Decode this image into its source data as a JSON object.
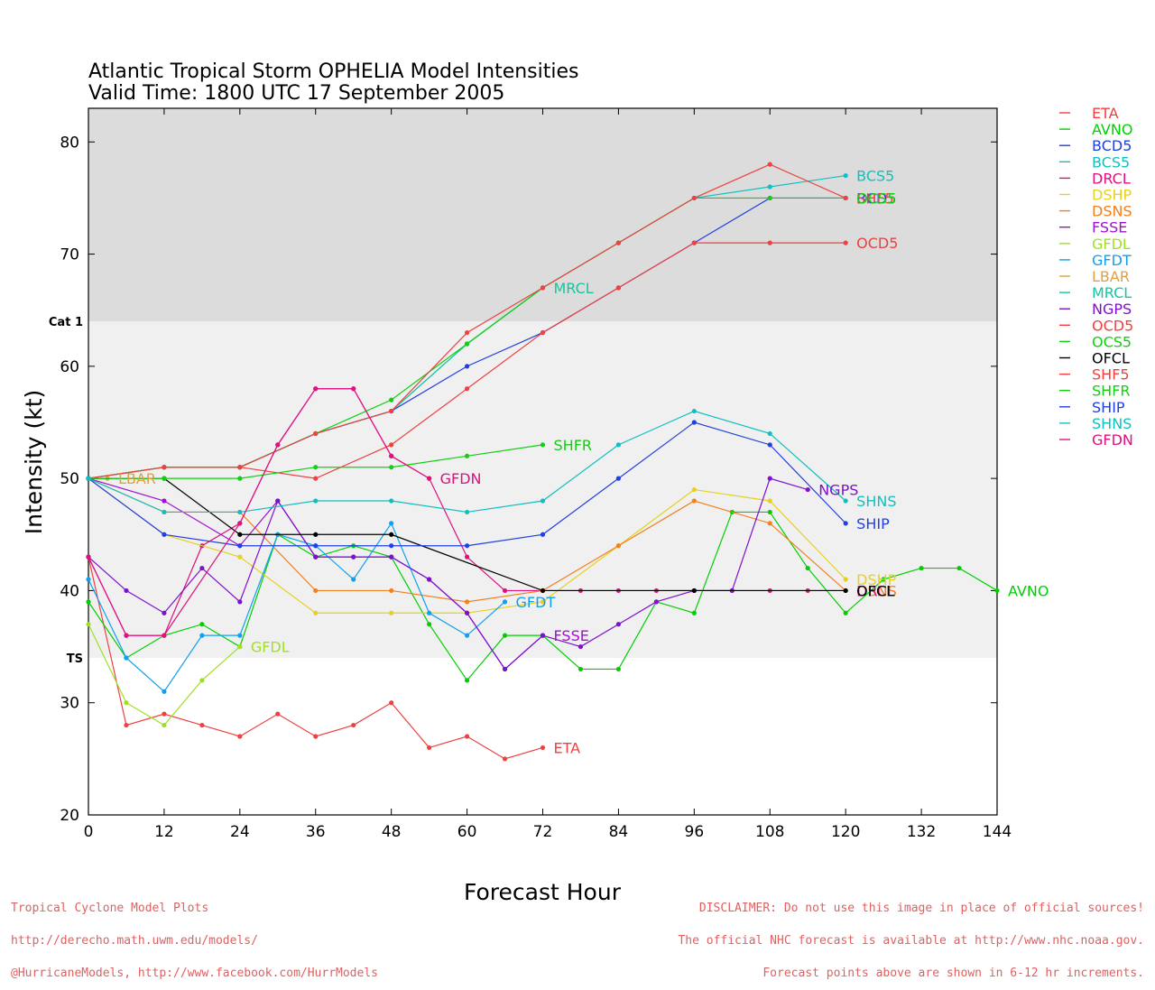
{
  "chart_data": {
    "type": "line",
    "title": "Atlantic Tropical Storm OPHELIA Model Intensities",
    "subtitle": "Valid Time: 1800 UTC 17 September 2005",
    "xlabel": "Forecast Hour",
    "ylabel": "Intensity (kt)",
    "xlim": [
      0,
      144
    ],
    "ylim": [
      20,
      83
    ],
    "xticks": [
      0,
      12,
      24,
      36,
      48,
      60,
      72,
      84,
      96,
      108,
      120,
      132,
      144
    ],
    "yticks": [
      20,
      30,
      40,
      50,
      60,
      70,
      80
    ],
    "bands": [
      {
        "label": "TS",
        "from": 34,
        "to": 64,
        "color": "#f0f0f0"
      },
      {
        "label": "Cat 1",
        "from": 64,
        "to": 83,
        "color": "#dcdcdc"
      }
    ],
    "legend_position": "right",
    "series": [
      {
        "name": "ETA",
        "color": "#f04040",
        "x": [
          0,
          6,
          12,
          18,
          24,
          30,
          36,
          42,
          48,
          54,
          60,
          66,
          72
        ],
        "y": [
          43,
          28,
          29,
          28,
          27,
          29,
          27,
          28,
          30,
          26,
          27,
          25,
          26
        ]
      },
      {
        "name": "AVNO",
        "color": "#00d000",
        "x": [
          0,
          6,
          12,
          18,
          24,
          30,
          36,
          42,
          48,
          54,
          60,
          66,
          72,
          78,
          84,
          90,
          96,
          102,
          108,
          114,
          120,
          126,
          132,
          138,
          144
        ],
        "y": [
          39,
          34,
          36,
          37,
          35,
          45,
          43,
          44,
          43,
          37,
          32,
          36,
          36,
          33,
          33,
          39,
          38,
          47,
          47,
          42,
          38,
          41,
          42,
          42,
          40
        ]
      },
      {
        "name": "BCD5",
        "color": "#2040e0",
        "x": [
          0,
          12,
          24,
          36,
          48,
          60,
          72,
          84,
          96,
          108,
          120
        ],
        "y": [
          50,
          51,
          51,
          54,
          56,
          60,
          63,
          67,
          71,
          75,
          75
        ]
      },
      {
        "name": "BCS5",
        "color": "#10c0c0",
        "x": [
          0,
          12,
          24,
          36,
          48,
          60,
          72,
          84,
          96,
          108,
          120
        ],
        "y": [
          50,
          51,
          51,
          54,
          56,
          62,
          67,
          71,
          75,
          76,
          77
        ]
      },
      {
        "name": "DRCL",
        "color": "#e01080",
        "x": [
          0,
          6,
          12,
          18,
          24,
          30,
          36,
          42,
          48,
          54,
          60,
          66,
          72,
          78,
          84,
          90,
          96,
          102,
          108,
          114,
          120
        ],
        "y": [
          43,
          36,
          36,
          44,
          46,
          53,
          58,
          58,
          52,
          50,
          43,
          40,
          40,
          40,
          40,
          40,
          40,
          40,
          40,
          40,
          40
        ]
      },
      {
        "name": "DSHP",
        "color": "#e8d020",
        "x": [
          0,
          12,
          24,
          36,
          48,
          60,
          72,
          84,
          96,
          108,
          120
        ],
        "y": [
          50,
          45,
          43,
          38,
          38,
          38,
          39,
          44,
          49,
          48,
          41
        ]
      },
      {
        "name": "DSNS",
        "color": "#f08020",
        "x": [
          0,
          12,
          24,
          36,
          48,
          60,
          72,
          84,
          96,
          108,
          120
        ],
        "y": [
          50,
          47,
          47,
          40,
          40,
          39,
          40,
          44,
          48,
          46,
          40
        ]
      },
      {
        "name": "FSSE",
        "color": "#a010d0",
        "x": [
          0,
          12,
          24,
          30,
          36,
          42,
          48,
          54,
          60,
          66,
          72
        ],
        "y": [
          50,
          48,
          44,
          48,
          43,
          43,
          43,
          41,
          38,
          33,
          36
        ]
      },
      {
        "name": "GFDL",
        "color": "#a0e020",
        "x": [
          0,
          6,
          12,
          18,
          24
        ],
        "y": [
          37,
          30,
          28,
          32,
          35
        ]
      },
      {
        "name": "GFDT",
        "color": "#10a0f0",
        "x": [
          0,
          6,
          12,
          18,
          24,
          30,
          36,
          42,
          48,
          54,
          60,
          66
        ],
        "y": [
          41,
          34,
          31,
          36,
          36,
          45,
          44,
          41,
          46,
          38,
          36,
          39
        ]
      },
      {
        "name": "LBAR",
        "color": "#e0a040",
        "x": [
          0,
          3
        ],
        "y": [
          50,
          50
        ]
      },
      {
        "name": "MRCL",
        "color": "#10c8a0",
        "x": [
          0,
          12,
          24,
          36,
          48,
          60,
          72
        ],
        "y": [
          50,
          51,
          51,
          54,
          56,
          62,
          67
        ]
      },
      {
        "name": "NGPS",
        "color": "#8010d0",
        "x": [
          0,
          6,
          12,
          18,
          24,
          30,
          36,
          42,
          48,
          54,
          60,
          66,
          72,
          78,
          84,
          90,
          96,
          102,
          108,
          114
        ],
        "y": [
          43,
          40,
          38,
          42,
          39,
          48,
          43,
          43,
          43,
          41,
          38,
          33,
          36,
          35,
          37,
          39,
          40,
          40,
          50,
          49
        ]
      },
      {
        "name": "OCD5",
        "color": "#f04040",
        "x": [
          0,
          12,
          24,
          36,
          48,
          60,
          72,
          84,
          96,
          108,
          120
        ],
        "y": [
          50,
          51,
          51,
          50,
          53,
          58,
          63,
          67,
          71,
          71,
          71
        ]
      },
      {
        "name": "OCS5",
        "color": "#10d010",
        "x": [
          0,
          12,
          24,
          36,
          48,
          60,
          72,
          84,
          96,
          108,
          120
        ],
        "y": [
          50,
          51,
          51,
          54,
          57,
          62,
          67,
          71,
          75,
          75,
          75
        ]
      },
      {
        "name": "OFCL",
        "color": "#000000",
        "x": [
          0,
          12,
          24,
          36,
          48,
          72,
          96,
          120
        ],
        "y": [
          50,
          50,
          45,
          45,
          45,
          40,
          40,
          40
        ]
      },
      {
        "name": "SHF5",
        "color": "#f04040",
        "x": [
          0,
          12,
          24,
          36,
          48,
          60,
          72,
          84,
          96,
          108,
          120
        ],
        "y": [
          50,
          51,
          51,
          54,
          56,
          63,
          67,
          71,
          75,
          78,
          75
        ]
      },
      {
        "name": "SHFR",
        "color": "#10d010",
        "x": [
          0,
          12,
          24,
          36,
          48,
          60,
          72
        ],
        "y": [
          50,
          50,
          50,
          51,
          51,
          52,
          53
        ]
      },
      {
        "name": "SHIP",
        "color": "#2040e0",
        "x": [
          0,
          12,
          24,
          36,
          48,
          60,
          72,
          84,
          96,
          108,
          120
        ],
        "y": [
          50,
          45,
          44,
          44,
          44,
          44,
          45,
          50,
          55,
          53,
          46
        ]
      },
      {
        "name": "SHNS",
        "color": "#10c0c0",
        "x": [
          0,
          12,
          24,
          36,
          48,
          60,
          72,
          84,
          96,
          108,
          120
        ],
        "y": [
          50,
          47,
          47,
          48,
          48,
          47,
          48,
          53,
          56,
          54,
          48
        ]
      },
      {
        "name": "GFDN",
        "color": "#e01080",
        "x": [
          0,
          6,
          12,
          24,
          30,
          36,
          42,
          48,
          54
        ],
        "y": [
          43,
          36,
          36,
          46,
          53,
          58,
          58,
          52,
          50
        ]
      }
    ],
    "end_labels": [
      {
        "text": "ETA",
        "series": "ETA"
      },
      {
        "text": "AVNO",
        "series": "AVNO"
      },
      {
        "text": "BCD5",
        "series": "BCD5"
      },
      {
        "text": "BCS5",
        "series": "BCS5"
      },
      {
        "text": "OCD5",
        "series": "OCD5"
      },
      {
        "text": "SHF5",
        "series": "SHF5"
      },
      {
        "text": "OCS5",
        "series": "OCS5"
      },
      {
        "text": "SHFR",
        "series": "SHFR"
      },
      {
        "text": "GFDN",
        "series": "GFDN"
      },
      {
        "text": "LBAR",
        "series": "LBAR"
      },
      {
        "text": "FSSE",
        "series": "FSSE"
      },
      {
        "text": "GFDL",
        "series": "GFDL"
      },
      {
        "text": "GFDT",
        "series": "GFDT"
      },
      {
        "text": "MRCL",
        "series": "MRCL"
      },
      {
        "text": "NGPS",
        "series": "NGPS"
      },
      {
        "text": "SHNS",
        "series": "SHNS"
      },
      {
        "text": "SHIP",
        "series": "SHIP"
      },
      {
        "text": "DSHP",
        "series": "DSHP"
      },
      {
        "text": "DSNS",
        "series": "DSNS"
      },
      {
        "text": "DRCL",
        "series": "DRCL"
      },
      {
        "text": "OFCL",
        "series": "OFCL"
      }
    ]
  },
  "footer": {
    "left": [
      "Tropical Cyclone Model Plots",
      "http://derecho.math.uwm.edu/models/",
      "@HurricaneModels, http://www.facebook.com/HurrModels"
    ],
    "right": [
      "DISCLAIMER: Do not use this image in place of official sources!",
      "The official NHC forecast is available at http://www.nhc.noaa.gov.",
      "Forecast points above are shown in 6-12 hr increments."
    ]
  }
}
